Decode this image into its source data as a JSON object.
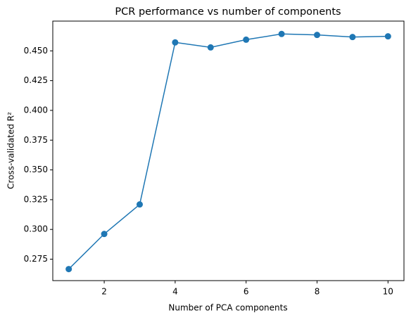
{
  "chart_data": {
    "type": "line",
    "title": "PCR performance vs number of components",
    "x_label": "Number of PCA components",
    "y_label": "Cross-validated R²",
    "x": [
      1,
      2,
      3,
      4,
      5,
      6,
      7,
      8,
      9,
      10
    ],
    "series": [
      {
        "color": "#1f77b4",
        "values": [
          0.2667,
          0.2962,
          0.321,
          0.4571,
          0.4529,
          0.4594,
          0.4642,
          0.4634,
          0.4616,
          0.4622
        ]
      }
    ],
    "xlim": [
      0.55,
      10.45
    ],
    "xticks": [
      2,
      4,
      6,
      8,
      10
    ],
    "ylim": [
      0.257,
      0.475
    ],
    "yticks": [
      0.275,
      {
        "value": 0.3,
        "label": "0.300"
      },
      0.325,
      {
        "value": 0.35,
        "label": "0.350"
      },
      0.375,
      {
        "value": 0.4,
        "label": "0.400"
      },
      0.425,
      {
        "value": 0.45,
        "label": "0.450"
      }
    ],
    "markers": true
  }
}
